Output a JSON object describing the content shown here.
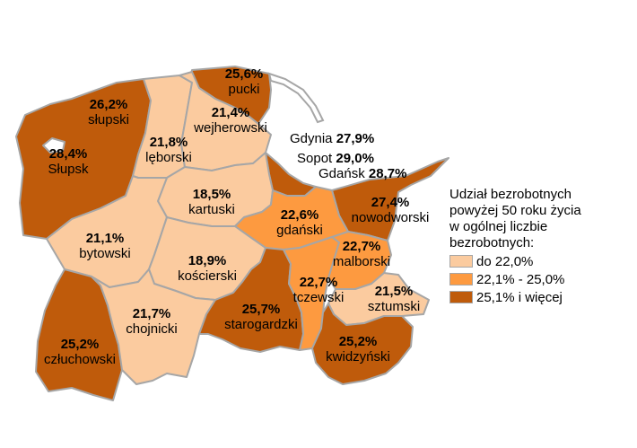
{
  "colors": {
    "light": "#fbcb9f",
    "medium": "#fd9a40",
    "dark": "#bf5b0b",
    "border": "#a6a6a6"
  },
  "regions": {
    "slupski": {
      "name": "słupski",
      "value": "26,2%",
      "class": "dark"
    },
    "slupsk": {
      "name": "Słupsk",
      "value": "28,4%",
      "class": "dark"
    },
    "pucki": {
      "name": "pucki",
      "value": "25,6%",
      "class": "dark"
    },
    "wejherowski": {
      "name": "wejherowski",
      "value": "21,4%",
      "class": "light"
    },
    "leborski": {
      "name": "lęborski",
      "value": "21,8%",
      "class": "light"
    },
    "kartuski": {
      "name": "kartuski",
      "value": "18,5%",
      "class": "light"
    },
    "gdanski": {
      "name": "gdański",
      "value": "22,6%",
      "class": "medium"
    },
    "nowodworski": {
      "name": "nowodworski",
      "value": "27,4%",
      "class": "dark"
    },
    "bytowski": {
      "name": "bytowski",
      "value": "21,1%",
      "class": "light"
    },
    "koscierski": {
      "name": "kościerski",
      "value": "18,9%",
      "class": "light"
    },
    "malborski": {
      "name": "malborski",
      "value": "22,7%",
      "class": "medium"
    },
    "tczewski": {
      "name": "tczewski",
      "value": "22,7%",
      "class": "medium"
    },
    "sztumski": {
      "name": "sztumski",
      "value": "21,5%",
      "class": "light"
    },
    "starogardzki": {
      "name": "starogardzki",
      "value": "25,7%",
      "class": "dark"
    },
    "chojnicki": {
      "name": "chojnicki",
      "value": "21,7%",
      "class": "light"
    },
    "czluchowski": {
      "name": "człuchowski",
      "value": "25,2%",
      "class": "dark"
    },
    "kwidzynski": {
      "name": "kwidzyński",
      "value": "25,2%",
      "class": "dark"
    }
  },
  "cities": {
    "gdynia": {
      "name": "Gdynia",
      "value": "27,9%"
    },
    "sopot": {
      "name": "Sopot",
      "value": "29,0%"
    },
    "gdansk": {
      "name": "Gdańsk",
      "value": "28,7%"
    }
  },
  "legend": {
    "title_lines": [
      "Udział bezrobotnych",
      "powyżej 50 roku życia",
      "w ogólnej liczbie",
      "bezrobotnych:"
    ],
    "items": [
      {
        "label": "do 22,0%",
        "class": "light"
      },
      {
        "label": "22,1% - 25,0%",
        "class": "medium"
      },
      {
        "label": "25,1% i więcej",
        "class": "dark"
      }
    ]
  }
}
